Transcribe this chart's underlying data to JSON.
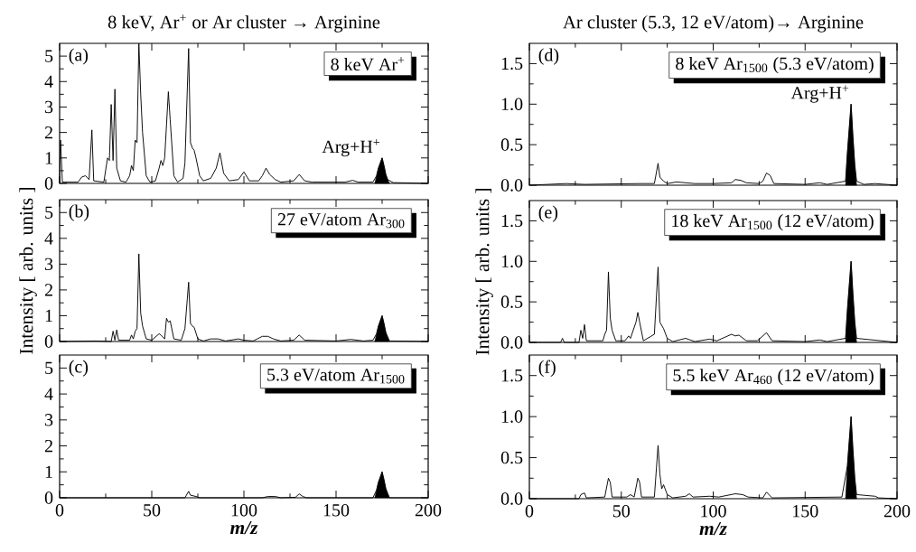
{
  "chart_data": [
    {
      "type": "line",
      "title": "8 keV, Ar$^{+}$ or Ar cluster → Arginine",
      "annotations": [
        "(a)",
        "8 keV Ar$^{+}$",
        {
          "text": "Arg+H$^{+}$",
          "x": 175,
          "y": 1.0
        }
      ],
      "xlim": [
        0,
        200
      ],
      "ylim": [
        0,
        5.5
      ],
      "tick_labels": "y",
      "xticks": [
        0,
        {
          "value": 25,
          "label": null
        },
        50,
        {
          "value": 75,
          "label": null
        },
        100,
        {
          "value": 125,
          "label": null
        },
        150,
        {
          "value": 175,
          "label": null
        },
        200
      ],
      "yticks": [
        0,
        {
          "value": 0.5,
          "label": null
        },
        1,
        {
          "value": 1.5,
          "label": null
        },
        2,
        {
          "value": 2.5,
          "label": null
        },
        3,
        {
          "value": 3.5,
          "label": null
        },
        4,
        {
          "value": 4.5,
          "label": null
        },
        5
      ],
      "series": [
        {
          "color": "#000000",
          "x": [
            0,
            0.5,
            1.5,
            10,
            12,
            14,
            16,
            17.5,
            18.5,
            24,
            26,
            27,
            28,
            29,
            30,
            31,
            33,
            36,
            38,
            39,
            40,
            41,
            42,
            43,
            44,
            45,
            47,
            49,
            52,
            54,
            55,
            56,
            57,
            59,
            60,
            62,
            64,
            67,
            68,
            70,
            71,
            72,
            73,
            74,
            76,
            78,
            82,
            85,
            87,
            89,
            92,
            97,
            100,
            103,
            108,
            110,
            112,
            114,
            117,
            120,
            127,
            130,
            133,
            137,
            155,
            159,
            162,
            170,
            172,
            173,
            175,
            176,
            177,
            178,
            181,
            200
          ],
          "values": [
            0,
            1.7,
            0.05,
            0.05,
            0.25,
            0.3,
            0.15,
            2.1,
            0.1,
            0.05,
            1.0,
            0.9,
            3.1,
            0.9,
            3.7,
            0.6,
            0.1,
            0.05,
            0.3,
            0.7,
            0.5,
            1.7,
            1.6,
            5.5,
            3.5,
            2.0,
            0.3,
            0.05,
            0.1,
            0.6,
            0.9,
            0.7,
            1.0,
            3.6,
            2.5,
            0.3,
            0.05,
            0.2,
            0.8,
            5.3,
            1.6,
            1.4,
            1.3,
            1.0,
            0.3,
            0.1,
            0.2,
            0.6,
            1.2,
            0.4,
            0.1,
            0.15,
            0.45,
            0.1,
            0.1,
            0.3,
            0.6,
            0.35,
            0.15,
            0.05,
            0.1,
            0.35,
            0.1,
            0.05,
            0.05,
            0.12,
            0.05,
            0.05,
            0.3,
            0.6,
            1.0,
            0.7,
            0.35,
            0.15,
            0.03,
            0
          ]
        },
        {
          "type": "area",
          "color": "#000000",
          "x": [
            171,
            172,
            173,
            175,
            176,
            177,
            178,
            179
          ],
          "values": [
            0,
            0.3,
            0.6,
            1.0,
            0.7,
            0.35,
            0.15,
            0
          ]
        }
      ]
    },
    {
      "type": "line",
      "ylabel": "Intensity [ arb. units ]",
      "annotations": [
        "(b)",
        "27 eV/atom Ar$_{300}$"
      ],
      "xlim": [
        0,
        200
      ],
      "ylim": [
        0,
        5.5
      ],
      "tick_labels": "y",
      "xticks": [
        0,
        {
          "value": 25,
          "label": null
        },
        50,
        {
          "value": 75,
          "label": null
        },
        100,
        {
          "value": 125,
          "label": null
        },
        150,
        {
          "value": 175,
          "label": null
        },
        200
      ],
      "yticks": [
        0,
        {
          "value": 0.5,
          "label": null
        },
        1,
        {
          "value": 1.5,
          "label": null
        },
        2,
        {
          "value": 2.5,
          "label": null
        },
        3,
        {
          "value": 3.5,
          "label": null
        },
        4,
        {
          "value": 4.5,
          "label": null
        },
        5
      ],
      "series": [
        {
          "color": "#000000",
          "x": [
            0,
            20,
            28,
            29,
            30,
            31,
            32,
            38,
            39,
            40,
            41,
            42,
            43,
            44,
            45,
            47,
            50,
            54,
            55,
            57,
            58,
            59,
            60,
            62,
            66,
            68,
            70,
            71,
            72,
            73,
            75,
            78,
            82,
            86,
            90,
            97,
            100,
            105,
            110,
            113,
            116,
            120,
            127,
            130,
            133,
            150,
            158,
            165,
            170,
            172,
            173,
            175,
            176,
            177,
            179,
            200
          ],
          "values": [
            0,
            0.02,
            0,
            0.4,
            0.05,
            0.45,
            0.05,
            0.05,
            0.25,
            0.1,
            0.4,
            0.5,
            3.4,
            1.1,
            0.6,
            0.1,
            0.05,
            0.3,
            0.25,
            0.1,
            0.9,
            0.75,
            0.8,
            0.1,
            0.05,
            0.5,
            2.3,
            0.7,
            0.6,
            0.55,
            0.1,
            0.02,
            0.1,
            0.1,
            0.02,
            0.1,
            0.05,
            0.02,
            0.2,
            0.2,
            0.1,
            0.02,
            0.05,
            0.25,
            0.05,
            0.02,
            0.08,
            0.02,
            0.05,
            0.3,
            0.6,
            1.0,
            0.7,
            0.35,
            0.02,
            0
          ]
        },
        {
          "type": "area",
          "color": "#000000",
          "x": [
            171,
            172,
            173,
            175,
            176,
            177,
            178,
            179
          ],
          "values": [
            0,
            0.3,
            0.6,
            1.0,
            0.7,
            0.35,
            0.15,
            0
          ]
        }
      ]
    },
    {
      "type": "line",
      "xlabel": "m/z",
      "annotations": [
        "(c)",
        "5.3 eV/atom Ar$_{1500}$"
      ],
      "xlim": [
        0,
        200
      ],
      "ylim": [
        0,
        5.5
      ],
      "xticks": [
        0,
        {
          "value": 25,
          "label": null
        },
        50,
        {
          "value": 75,
          "label": null
        },
        100,
        {
          "value": 125,
          "label": null
        },
        150,
        {
          "value": 175,
          "label": null
        },
        200
      ],
      "yticks": [
        0,
        {
          "value": 0.5,
          "label": null
        },
        1,
        {
          "value": 1.5,
          "label": null
        },
        2,
        {
          "value": 2.5,
          "label": null
        },
        3,
        {
          "value": 3.5,
          "label": null
        },
        4,
        {
          "value": 4.5,
          "label": null
        },
        5
      ],
      "series": [
        {
          "color": "#000000",
          "x": [
            0,
            68,
            70,
            71,
            74,
            76,
            110,
            113,
            117,
            120,
            128,
            130,
            132,
            134,
            170,
            172,
            173,
            175,
            176,
            177,
            179,
            200
          ],
          "values": [
            0,
            0,
            0.25,
            0.1,
            0.05,
            0,
            0,
            0.05,
            0.05,
            0,
            0.02,
            0.15,
            0.05,
            0,
            0,
            0.3,
            0.6,
            1.0,
            0.7,
            0.35,
            0,
            0
          ]
        },
        {
          "type": "area",
          "color": "#000000",
          "x": [
            171,
            172,
            173,
            175,
            176,
            177,
            178,
            179
          ],
          "values": [
            0,
            0.3,
            0.6,
            1.0,
            0.7,
            0.35,
            0.15,
            0
          ]
        }
      ]
    },
    {
      "type": "line",
      "title": "Ar cluster (5.3, 12 eV/atom)→ Arginine",
      "annotations": [
        "(d)",
        "8 keV Ar$_{1500}$ (5.3 eV/atom)",
        {
          "text": "Arg+H$^{+}$",
          "x": 175,
          "y": 1.0
        }
      ],
      "xlim": [
        0,
        200
      ],
      "ylim": [
        0,
        1.75
      ],
      "tick_labels": "y",
      "xticks": [
        0,
        {
          "value": 25,
          "label": null
        },
        50,
        {
          "value": 75,
          "label": null
        },
        100,
        {
          "value": 125,
          "label": null
        },
        150,
        {
          "value": 175,
          "label": null
        },
        200
      ],
      "yticks": [
        {
          "value": 0,
          "label": "0.0"
        },
        {
          "value": 0.25,
          "label": null
        },
        {
          "value": 0.5,
          "label": "0.5"
        },
        {
          "value": 0.75,
          "label": null
        },
        {
          "value": 1,
          "label": "1.0"
        },
        {
          "value": 1.25,
          "label": null
        },
        {
          "value": 1.5,
          "label": "1.5"
        }
      ],
      "series": [
        {
          "color": "#000000",
          "x": [
            0,
            10,
            20,
            30,
            60,
            68,
            70,
            71,
            73,
            75,
            80,
            85,
            90,
            100,
            110,
            112,
            115,
            118,
            125,
            127,
            129,
            131,
            133,
            150,
            158,
            162,
            172,
            173,
            175,
            176,
            177,
            178,
            182,
            188,
            200
          ],
          "values": [
            0,
            0.01,
            0.02,
            0.01,
            0.02,
            0.02,
            0.27,
            0.1,
            0.05,
            0.02,
            0.04,
            0.03,
            0.02,
            0.02,
            0.03,
            0.07,
            0.06,
            0.03,
            0.02,
            0.05,
            0.15,
            0.12,
            0.02,
            0.01,
            0.03,
            0.01,
            0.05,
            0.4,
            1.0,
            0.6,
            0.25,
            0.05,
            0.01,
            0.02,
            0
          ]
        },
        {
          "type": "area",
          "color": "#000000",
          "x": [
            172,
            173,
            175,
            176,
            177,
            178
          ],
          "values": [
            0,
            0.4,
            1.0,
            0.6,
            0.25,
            0
          ]
        }
      ]
    },
    {
      "type": "line",
      "ylabel": "Intensity [ arb. units ]",
      "annotations": [
        "(e)",
        "18 keV Ar$_{1500}$ (12 eV/atom)"
      ],
      "xlim": [
        0,
        200
      ],
      "ylim": [
        0,
        1.75
      ],
      "tick_labels": "y",
      "xticks": [
        0,
        {
          "value": 25,
          "label": null
        },
        50,
        {
          "value": 75,
          "label": null
        },
        100,
        {
          "value": 125,
          "label": null
        },
        150,
        {
          "value": 175,
          "label": null
        },
        200
      ],
      "yticks": [
        {
          "value": 0,
          "label": "0.0"
        },
        {
          "value": 0.25,
          "label": null
        },
        {
          "value": 0.5,
          "label": "0.5"
        },
        {
          "value": 0.75,
          "label": null
        },
        {
          "value": 1,
          "label": "1.0"
        },
        {
          "value": 1.25,
          "label": null
        },
        {
          "value": 1.5,
          "label": "1.5"
        }
      ],
      "series": [
        {
          "color": "#000000",
          "x": [
            0,
            17,
            18,
            19,
            27,
            28,
            29,
            30,
            31,
            40,
            41,
            42,
            43,
            44,
            45,
            47,
            52,
            54,
            55,
            58,
            59,
            60,
            62,
            68,
            70,
            71,
            73,
            75,
            78,
            85,
            90,
            98,
            102,
            110,
            112,
            114,
            118,
            124,
            129,
            132,
            150,
            158,
            162,
            172,
            173,
            175,
            176,
            177,
            178,
            200
          ],
          "values": [
            0,
            0,
            0.05,
            0,
            0,
            0.15,
            0.05,
            0.22,
            0.02,
            0.02,
            0.1,
            0.15,
            0.87,
            0.3,
            0.15,
            0.02,
            0.02,
            0.08,
            0.05,
            0.25,
            0.37,
            0.25,
            0.02,
            0.1,
            0.93,
            0.25,
            0.17,
            0.05,
            0.01,
            0.05,
            0.01,
            0.04,
            0.02,
            0.1,
            0.08,
            0.09,
            0.02,
            0.02,
            0.12,
            0.02,
            0.01,
            0.03,
            0.01,
            0.05,
            0.4,
            1.0,
            0.6,
            0.25,
            0.05,
            0
          ]
        },
        {
          "type": "area",
          "color": "#000000",
          "x": [
            172,
            173,
            175,
            176,
            177,
            178
          ],
          "values": [
            0,
            0.4,
            1.0,
            0.6,
            0.25,
            0
          ]
        }
      ]
    },
    {
      "type": "line",
      "xlabel": "m/z",
      "annotations": [
        "(f)",
        "5.5 keV Ar$_{460}$ (12 eV/atom)"
      ],
      "xlim": [
        0,
        200
      ],
      "ylim": [
        0,
        1.75
      ],
      "xticks": [
        0,
        {
          "value": 25,
          "label": null
        },
        50,
        {
          "value": 75,
          "label": null
        },
        100,
        {
          "value": 125,
          "label": null
        },
        150,
        {
          "value": 175,
          "label": null
        },
        200
      ],
      "yticks": [
        {
          "value": 0,
          "label": "0.0"
        },
        {
          "value": 0.25,
          "label": null
        },
        {
          "value": 0.5,
          "label": "0.5"
        },
        {
          "value": 0.75,
          "label": null
        },
        {
          "value": 1,
          "label": "1.0"
        },
        {
          "value": 1.25,
          "label": null
        },
        {
          "value": 1.5,
          "label": "1.5"
        }
      ],
      "series": [
        {
          "color": "#000000",
          "x": [
            0,
            27,
            28,
            30,
            31,
            41,
            43,
            44,
            45,
            53,
            55,
            57,
            59,
            60,
            61,
            68,
            70,
            71,
            72,
            73,
            75,
            78,
            85,
            87,
            89,
            98,
            103,
            112,
            116,
            119,
            127,
            129,
            132,
            170,
            173,
            175,
            176,
            177,
            178,
            188,
            190,
            200
          ],
          "values": [
            0,
            0,
            0.05,
            0.07,
            0.01,
            0.02,
            0.25,
            0.2,
            0.02,
            0.02,
            0.05,
            0.02,
            0.25,
            0.2,
            0.02,
            0.02,
            0.65,
            0.3,
            0.12,
            0.17,
            0.05,
            0.01,
            0.03,
            0.06,
            0.02,
            0.03,
            0.02,
            0.06,
            0.05,
            0.02,
            0.01,
            0.08,
            0.01,
            0.02,
            0.4,
            1.0,
            0.6,
            0.25,
            0.05,
            0.03,
            0.01,
            0
          ]
        },
        {
          "type": "area",
          "color": "#000000",
          "x": [
            172,
            173,
            175,
            176,
            177,
            178
          ],
          "values": [
            0,
            0.4,
            1.0,
            0.6,
            0.25,
            0
          ]
        }
      ]
    }
  ]
}
